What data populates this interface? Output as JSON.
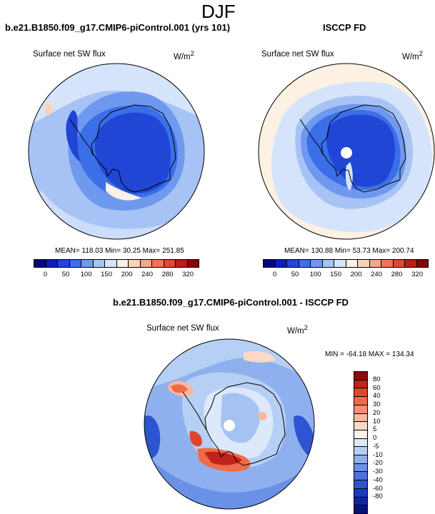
{
  "figure": {
    "season": "DJF",
    "panels": [
      {
        "title": "b.e21.B1850.f09_g17.CMIP6-piControl.001 (yrs 101)",
        "variable": "Surface net SW flux",
        "units_base": "W/m",
        "units_exp": "2",
        "stats": "MEAN= 118.03  Min=  30.25  Max= 251.85"
      },
      {
        "title": "ISCCP FD",
        "variable": "Surface net SW flux",
        "units_base": "W/m",
        "units_exp": "2",
        "stats": "MEAN= 130.88  Min=  53.73  Max= 200.74"
      },
      {
        "title": "b.e21.B1850.f09_g17.CMIP6-piControl.001 - ISCCP FD",
        "variable": "Surface net SW flux",
        "units_base": "W/m",
        "units_exp": "2",
        "stats": "MIN = -64.18 MAX = 134.34"
      }
    ],
    "abs_colorbar": {
      "labels": [
        "0",
        "50",
        "100",
        "150",
        "200",
        "240",
        "280",
        "320"
      ],
      "colors": [
        "#08067a",
        "#0c1fb3",
        "#2046d6",
        "#3b6fe8",
        "#6f98ef",
        "#a7c3f5",
        "#d5e4fa",
        "#fdf1e3",
        "#fbd3b9",
        "#f6a585",
        "#ef7552",
        "#de4a2c",
        "#b81f16",
        "#7e0a0a"
      ]
    },
    "diff_colorbar": {
      "labels": [
        "80",
        "60",
        "40",
        "30",
        "20",
        "10",
        "5",
        "0",
        "-5",
        "-10",
        "-20",
        "-30",
        "-40",
        "-60",
        "-80"
      ],
      "colors": [
        "#8b0c0a",
        "#c0231a",
        "#e0452b",
        "#f06a45",
        "#f49170",
        "#f8b89b",
        "#fbd9c5",
        "#fdf3ea",
        "#dce9fa",
        "#b6cff4",
        "#8eb0ee",
        "#6a91e7",
        "#4a73df",
        "#2d55d2",
        "#183cc0",
        "#0c2aa0",
        "#07127a"
      ]
    }
  }
}
